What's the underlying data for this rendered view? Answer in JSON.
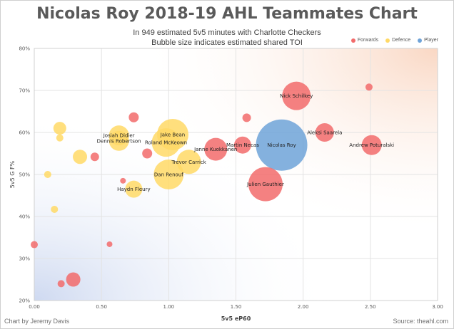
{
  "chart_data": {
    "type": "scatter",
    "title": "Nicolas Roy 2018-19 AHL Teammates Chart",
    "subtitle_1": "In 949 estimated 5v5 minutes with Charlotte Checkers",
    "subtitle_2": "Bubble size indicates estimated shared TOI",
    "xlabel": "5v5 eP60",
    "ylabel": "5v5 G F%",
    "xlim": [
      0,
      3
    ],
    "ylim": [
      20,
      80
    ],
    "x_ticks": [
      "0.00",
      "0.50",
      "1.00",
      "1.50",
      "2.00",
      "2.50",
      "3.00"
    ],
    "y_ticks": [
      "20%",
      "30%",
      "40%",
      "50%",
      "60%",
      "70%",
      "80%"
    ],
    "legend_position": "top-right",
    "legend": [
      {
        "name": "Forwards",
        "color": "#f26b6b"
      },
      {
        "name": "Defence",
        "color": "#ffd966"
      },
      {
        "name": "Player",
        "color": "#6fa3d8"
      }
    ],
    "series": [
      {
        "name": "Forwards",
        "color": "#f26b6b",
        "points": [
          {
            "label": "Nick Schilkey",
            "x": 1.95,
            "y": 68.7,
            "size": 20
          },
          {
            "label": "Aleksi Saarela",
            "x": 2.16,
            "y": 60.0,
            "size": 13
          },
          {
            "label": "Andrew Poturalski",
            "x": 2.51,
            "y": 57.0,
            "size": 14
          },
          {
            "label": "Martin Necas",
            "x": 1.55,
            "y": 57.0,
            "size": 12
          },
          {
            "label": "Janne Kuokkanen",
            "x": 1.35,
            "y": 56.0,
            "size": 16
          },
          {
            "label": "Julien Gauthier",
            "x": 1.72,
            "y": 47.7,
            "size": 24
          },
          {
            "label": "",
            "x": 0.74,
            "y": 63.6,
            "size": 7
          },
          {
            "label": "",
            "x": 1.58,
            "y": 63.5,
            "size": 6
          },
          {
            "label": "",
            "x": 2.49,
            "y": 70.8,
            "size": 5
          },
          {
            "label": "",
            "x": 0.84,
            "y": 55.0,
            "size": 7
          },
          {
            "label": "",
            "x": 0.45,
            "y": 54.2,
            "size": 6
          },
          {
            "label": "",
            "x": 0.66,
            "y": 48.5,
            "size": 4
          },
          {
            "label": "",
            "x": 0.56,
            "y": 33.4,
            "size": 4
          },
          {
            "label": "",
            "x": 0.0,
            "y": 33.3,
            "size": 5
          },
          {
            "label": "",
            "x": 0.29,
            "y": 25.0,
            "size": 10
          },
          {
            "label": "",
            "x": 0.2,
            "y": 24.0,
            "size": 5
          }
        ]
      },
      {
        "name": "Defence",
        "color": "#ffd966",
        "points": [
          {
            "label": "Jake Bean",
            "x": 1.03,
            "y": 59.5,
            "size": 22
          },
          {
            "label": "Josiah Didier",
            "x": 0.63,
            "y": 59.3,
            "size": 14
          },
          {
            "label": "Dennis Robertson",
            "x": 0.63,
            "y": 58.0,
            "size": 14
          },
          {
            "label": "Roland McKeown",
            "x": 0.98,
            "y": 57.6,
            "size": 20
          },
          {
            "label": "Trevor Carrick",
            "x": 1.15,
            "y": 53.0,
            "size": 17
          },
          {
            "label": "Dan Renouf",
            "x": 1.0,
            "y": 50.0,
            "size": 21
          },
          {
            "label": "Haydn Fleury",
            "x": 0.74,
            "y": 46.5,
            "size": 12
          },
          {
            "label": "",
            "x": 0.19,
            "y": 61.0,
            "size": 9
          },
          {
            "label": "",
            "x": 0.19,
            "y": 58.7,
            "size": 5
          },
          {
            "label": "",
            "x": 0.34,
            "y": 54.2,
            "size": 10
          },
          {
            "label": "",
            "x": 0.1,
            "y": 50.0,
            "size": 5
          },
          {
            "label": "",
            "x": 0.15,
            "y": 41.7,
            "size": 5
          }
        ]
      },
      {
        "name": "Player",
        "color": "#6fa3d8",
        "points": [
          {
            "label": "Nicolas Roy",
            "x": 1.84,
            "y": 57.0,
            "size": 36
          }
        ]
      }
    ]
  },
  "footer": {
    "credit": "Chart by Jeremy Davis",
    "source": "Source:  theahl.com"
  }
}
